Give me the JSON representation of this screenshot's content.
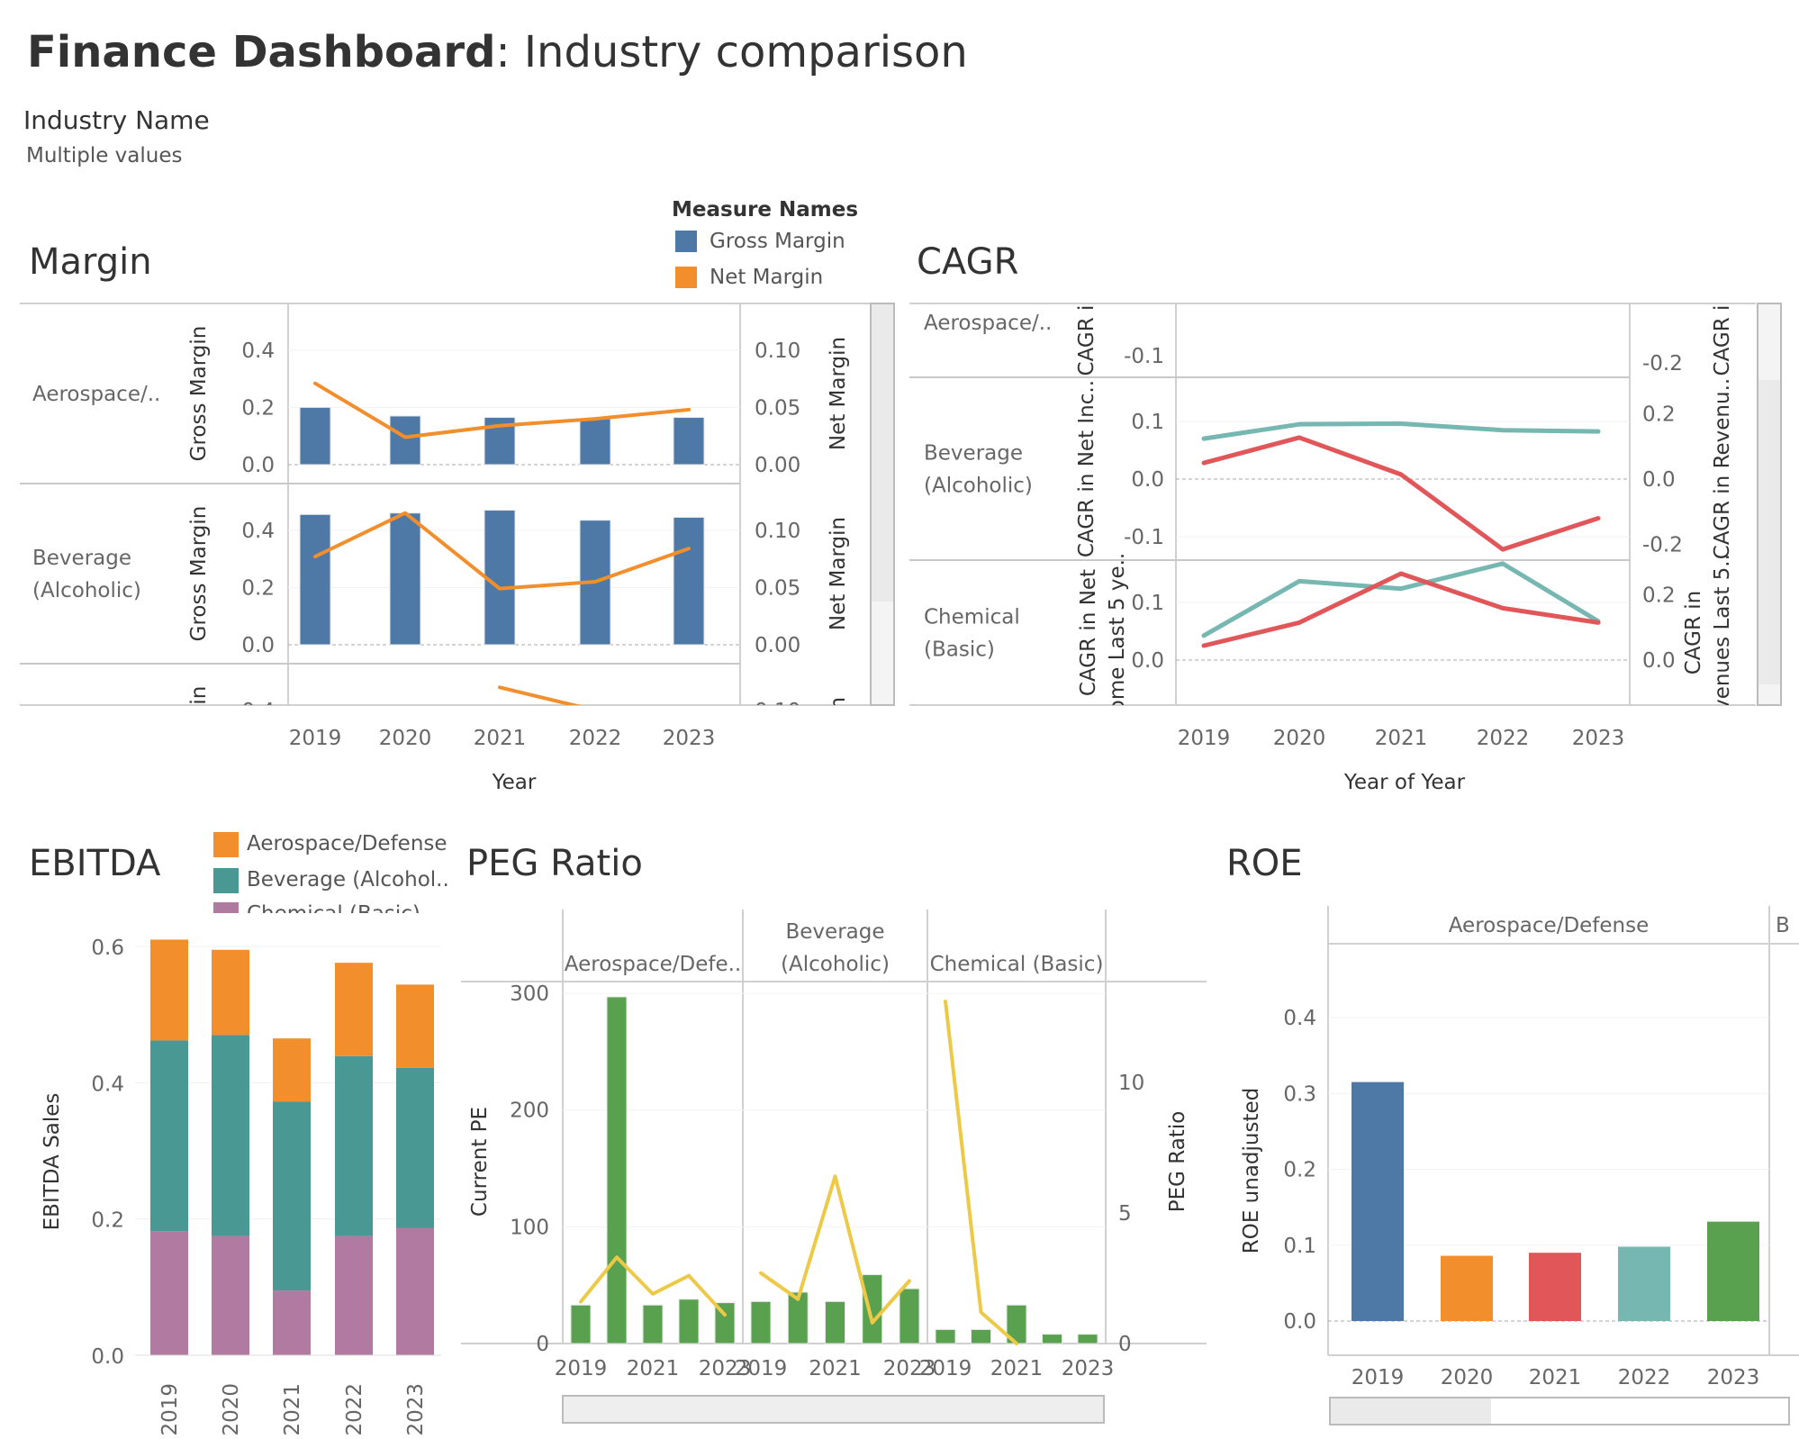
{
  "header": {
    "title_bold": "Finance Dashboard",
    "title_rest": ": Industry comparison",
    "filter_label": "Industry Name",
    "filter_value": "Multiple values"
  },
  "colors": {
    "blue": "#4e79a7",
    "orange": "#f28e2b",
    "teal": "#499894",
    "purple": "#b07aa1",
    "green": "#59a14f",
    "yellow": "#edc948",
    "red": "#e15759",
    "lightteal": "#76b7b2"
  },
  "margin": {
    "title": "Margin",
    "legend_title": "Measure Names",
    "legend": [
      "Gross Margin",
      "Net Margin"
    ],
    "row_labels": [
      [
        "Aerospace/.."
      ],
      [
        "Beverage",
        "(Alcoholic)"
      ],
      [
        ""
      ]
    ],
    "left_axis_label": "Gross Margin",
    "right_axis_label": "Net Margin",
    "left_ticks": [
      "0.4",
      "0.2",
      "0.0"
    ],
    "right_ticks": [
      "0.10",
      "0.05",
      "0.00"
    ],
    "x_label": "Year"
  },
  "cagr": {
    "title": "CAGR",
    "row_labels": [
      [
        "Aerospace/.."
      ],
      [
        "Beverage",
        "(Alcoholic)"
      ],
      [
        "Chemical",
        "(Basic)"
      ]
    ],
    "left_axis_labels": [
      [
        "CAGR i"
      ],
      [
        "CAGR in Net Inc.."
      ],
      [
        "CAGR in Net",
        "ome Last 5 ye.."
      ]
    ],
    "right_axis_labels": [
      [
        "CAGR i"
      ],
      [
        "CAGR in Revenu.."
      ],
      [
        "CAGR in",
        "venues Last 5.."
      ]
    ],
    "left_ticks": [
      [
        "-0.1"
      ],
      [
        "0.1",
        "0.0",
        "-0.1"
      ],
      [
        "0.1",
        "0.0"
      ]
    ],
    "right_ticks": [
      [
        "-0.2"
      ],
      [
        "0.2",
        "0.0",
        "-0.2"
      ],
      [
        "0.2",
        "0.0"
      ]
    ],
    "x_label": "Year of Year"
  },
  "ebitda": {
    "title": "EBITDA",
    "legend": [
      "Aerospace/Defense",
      "Beverage (Alcohol..",
      "Chemical (Basic)"
    ],
    "y_label": "EBITDA Sales",
    "y_ticks": [
      "0.6",
      "0.4",
      "0.2",
      "0.0"
    ]
  },
  "peg": {
    "title": "PEG Ratio",
    "panel_labels": [
      [
        "Aerospace/Defe.."
      ],
      [
        "Beverage",
        "(Alcoholic)"
      ],
      [
        "Chemical (Basic)"
      ]
    ],
    "left_axis_label": "Current PE",
    "right_axis_label": "PEG Ratio",
    "left_ticks": [
      "300",
      "200",
      "100",
      "0"
    ],
    "right_ticks": [
      "10",
      "5",
      "0"
    ],
    "x_ticks": [
      "2019",
      "2021",
      "2023"
    ]
  },
  "roe": {
    "title": "ROE",
    "panel_label": "Aerospace/Defense",
    "panel_label_next": "B",
    "y_label": "ROE unadjusted",
    "y_ticks": [
      "0.4",
      "0.3",
      "0.2",
      "0.1",
      "0.0"
    ]
  },
  "chart_data": [
    {
      "type": "bar",
      "name": "margin",
      "categories": [
        "2019",
        "2020",
        "2021",
        "2022",
        "2023"
      ],
      "panels": [
        {
          "industry": "Aerospace/Defense",
          "gross_margin": [
            0.2,
            0.17,
            0.165,
            0.16,
            0.165
          ],
          "net_margin": [
            0.071,
            0.024,
            0.034,
            0.04,
            0.048
          ]
        },
        {
          "industry": "Beverage (Alcoholic)",
          "gross_margin": [
            0.455,
            0.46,
            0.47,
            0.435,
            0.445
          ],
          "net_margin": [
            0.077,
            0.115,
            0.049,
            0.055,
            0.084
          ]
        },
        {
          "industry": "Chemical (Basic)",
          "gross_margin": [
            null,
            null,
            null,
            null,
            null
          ],
          "net_margin": [
            null,
            null,
            0.12,
            0.1,
            null
          ]
        }
      ],
      "y_left_lim": [
        0,
        0.5
      ],
      "y_right_lim": [
        0,
        0.125
      ]
    },
    {
      "type": "line",
      "name": "cagr",
      "categories": [
        "2019",
        "2020",
        "2021",
        "2022",
        "2023"
      ],
      "panels": [
        {
          "industry": "Aerospace/Defense",
          "net_income": [],
          "revenues": []
        },
        {
          "industry": "Beverage (Alcoholic)",
          "net_income": [
            0.028,
            0.072,
            0.008,
            -0.122,
            -0.068
          ],
          "revenues": [
            0.124,
            0.168,
            0.17,
            0.15,
            0.146
          ]
        },
        {
          "industry": "Chemical (Basic)",
          "net_income": [
            0.025,
            0.065,
            0.15,
            0.09,
            0.065
          ],
          "revenues": [
            0.075,
            0.242,
            0.219,
            0.296,
            0.119
          ]
        }
      ]
    },
    {
      "type": "bar",
      "name": "ebitda",
      "stacked": true,
      "categories": [
        "2019",
        "2020",
        "2021",
        "2022",
        "2023"
      ],
      "series": [
        {
          "name": "Chemical (Basic)",
          "values": [
            0.182,
            0.175,
            0.095,
            0.175,
            0.187
          ]
        },
        {
          "name": "Beverage (Alcohol..",
          "values": [
            0.28,
            0.295,
            0.277,
            0.264,
            0.235
          ]
        },
        {
          "name": "Aerospace/Defense",
          "values": [
            0.148,
            0.125,
            0.093,
            0.137,
            0.122
          ]
        }
      ],
      "ylim": [
        0,
        0.65
      ]
    },
    {
      "type": "bar",
      "name": "peg",
      "categories": [
        "2019",
        "2020",
        "2021",
        "2022",
        "2023"
      ],
      "panels": [
        {
          "industry": "Aerospace/Defense",
          "current_pe": [
            33,
            297,
            33,
            38,
            35
          ],
          "peg_ratio": [
            1.6,
            3.3,
            1.9,
            2.6,
            1.1
          ]
        },
        {
          "industry": "Beverage (Alcoholic)",
          "current_pe": [
            36,
            44,
            36,
            59,
            47
          ],
          "peg_ratio": [
            2.7,
            1.7,
            6.4,
            0.8,
            2.4
          ]
        },
        {
          "industry": "Chemical (Basic)",
          "current_pe": [
            12,
            12,
            33,
            8,
            8
          ],
          "peg_ratio": [
            13.1,
            1.2,
            0,
            null,
            null
          ]
        }
      ],
      "y_left_lim": [
        0,
        320
      ],
      "y_right_lim": [
        0,
        14
      ]
    },
    {
      "type": "bar",
      "name": "roe",
      "categories": [
        "2019",
        "2020",
        "2021",
        "2022",
        "2023"
      ],
      "values": [
        0.315,
        0.086,
        0.09,
        0.098,
        0.131
      ],
      "ylim": [
        0,
        0.48
      ]
    }
  ]
}
